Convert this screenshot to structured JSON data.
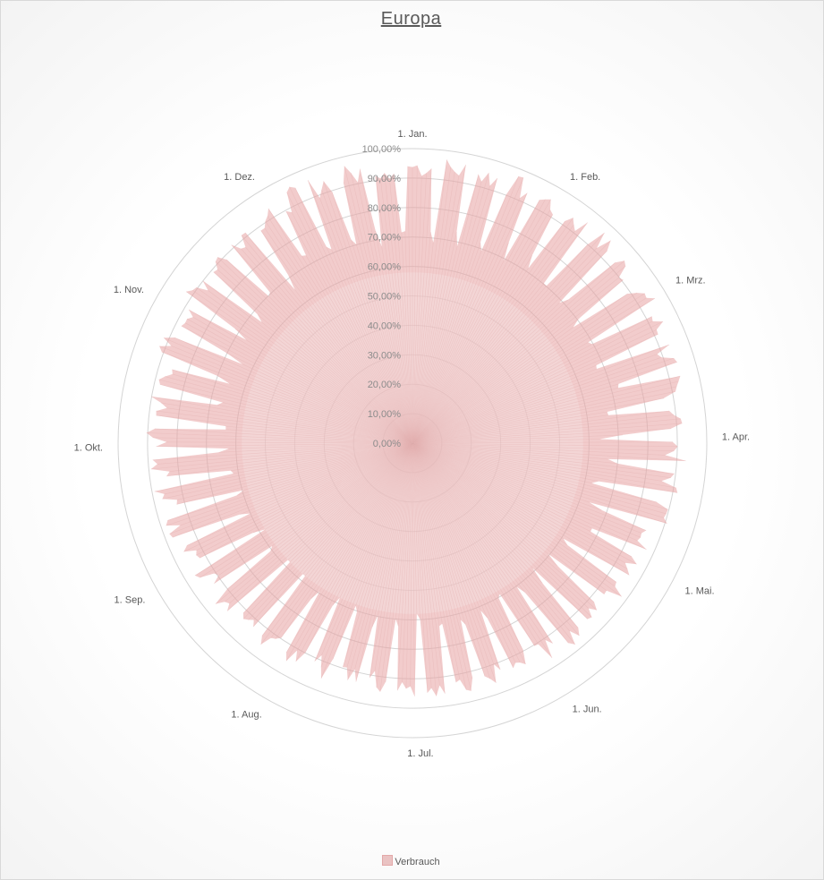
{
  "chart_data": {
    "type": "radar",
    "title": "Europa",
    "series": [
      {
        "name": "Verbrauch",
        "color": "#e8a3a3",
        "fill_opacity": 0.55,
        "values_generator": "daily-share-365",
        "range": [
          0.58,
          0.98
        ]
      }
    ],
    "categories": [
      "1. Jan.",
      "1. Feb.",
      "1. Mrz.",
      "1. Apr.",
      "1. Mai.",
      "1. Jun.",
      "1. Jul.",
      "1. Aug.",
      "1. Sep.",
      "1. Okt.",
      "1. Nov.",
      "1. Dez."
    ],
    "category_day_index": [
      0,
      31,
      59,
      90,
      120,
      151,
      181,
      212,
      243,
      273,
      304,
      334
    ],
    "days_in_year": 365,
    "radial_axis": {
      "min": 0,
      "max": 1.0,
      "step": 0.1,
      "tick_labels": [
        "0,00%",
        "10,00%",
        "20,00%",
        "30,00%",
        "40,00%",
        "50,00%",
        "60,00%",
        "70,00%",
        "80,00%",
        "90,00%",
        "100,00%"
      ]
    },
    "grid": true,
    "legend": {
      "position": "bottom",
      "label": "Verbrauch"
    }
  }
}
